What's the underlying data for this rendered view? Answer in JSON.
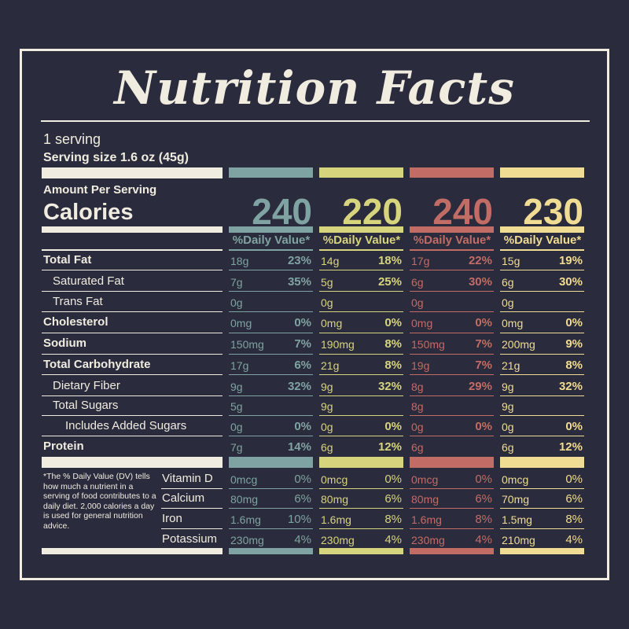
{
  "title": "Nutrition Facts",
  "servings": "1 serving",
  "serving_size_label": "Serving size",
  "serving_size_value": "1.6 oz (45g)",
  "amount_per_serving": "Amount Per Serving",
  "calories_label": "Calories",
  "dv_header": "%Daily Value*",
  "footnote": "*The % Daily Value (DV) tells how much a nutrient in a serving of food contributes to a daily diet. 2,000 calories a day is used for general nutrition advice.",
  "colors": {
    "background": "#2a2b3c",
    "text": "#f1ece0",
    "col1": "#7fa3a2",
    "col2": "#d7d47e",
    "col3": "#c26c66",
    "col4": "#f1dc93"
  },
  "nutrients": [
    {
      "label": "Total Fat",
      "bold": true,
      "indent": 0
    },
    {
      "label": "Saturated Fat",
      "bold": false,
      "indent": 1
    },
    {
      "label": "Trans Fat",
      "bold": false,
      "indent": 1
    },
    {
      "label": "Cholesterol",
      "bold": true,
      "indent": 0
    },
    {
      "label": "Sodium",
      "bold": true,
      "indent": 0
    },
    {
      "label": "Total Carbohydrate",
      "bold": true,
      "indent": 0
    },
    {
      "label": "Dietary Fiber",
      "bold": false,
      "indent": 1
    },
    {
      "label": "Total Sugars",
      "bold": false,
      "indent": 1
    },
    {
      "label": "Includes Added Sugars",
      "bold": false,
      "indent": 2
    },
    {
      "label": "Protein",
      "bold": true,
      "indent": 0
    }
  ],
  "vitamins": [
    "Vitamin D",
    "Calcium",
    "Iron",
    "Potassium"
  ],
  "products": [
    {
      "color": "#7fa3a2",
      "calories": "240",
      "rows": [
        {
          "amt": "18g",
          "pct": "23%"
        },
        {
          "amt": "7g",
          "pct": "35%"
        },
        {
          "amt": "0g",
          "pct": ""
        },
        {
          "amt": "0mg",
          "pct": "0%"
        },
        {
          "amt": "150mg",
          "pct": "7%"
        },
        {
          "amt": "17g",
          "pct": "6%"
        },
        {
          "amt": "9g",
          "pct": "32%"
        },
        {
          "amt": "5g",
          "pct": ""
        },
        {
          "amt": "0g",
          "pct": "0%"
        },
        {
          "amt": "7g",
          "pct": "14%"
        }
      ],
      "vitamins": [
        {
          "amt": "0mcg",
          "pct": "0%"
        },
        {
          "amt": "80mg",
          "pct": "6%"
        },
        {
          "amt": "1.6mg",
          "pct": "10%"
        },
        {
          "amt": "230mg",
          "pct": "4%"
        }
      ]
    },
    {
      "color": "#d7d47e",
      "calories": "220",
      "rows": [
        {
          "amt": "14g",
          "pct": "18%"
        },
        {
          "amt": "5g",
          "pct": "25%"
        },
        {
          "amt": "0g",
          "pct": ""
        },
        {
          "amt": "0mg",
          "pct": "0%"
        },
        {
          "amt": "190mg",
          "pct": "8%"
        },
        {
          "amt": "21g",
          "pct": "8%"
        },
        {
          "amt": "9g",
          "pct": "32%"
        },
        {
          "amt": "9g",
          "pct": ""
        },
        {
          "amt": "0g",
          "pct": "0%"
        },
        {
          "amt": "6g",
          "pct": "12%"
        }
      ],
      "vitamins": [
        {
          "amt": "0mcg",
          "pct": "0%"
        },
        {
          "amt": "80mg",
          "pct": "6%"
        },
        {
          "amt": "1.6mg",
          "pct": "8%"
        },
        {
          "amt": "230mg",
          "pct": "4%"
        }
      ]
    },
    {
      "color": "#c26c66",
      "calories": "240",
      "rows": [
        {
          "amt": "17g",
          "pct": "22%"
        },
        {
          "amt": "6g",
          "pct": "30%"
        },
        {
          "amt": "0g",
          "pct": ""
        },
        {
          "amt": "0mg",
          "pct": "0%"
        },
        {
          "amt": "150mg",
          "pct": "7%"
        },
        {
          "amt": "19g",
          "pct": "7%"
        },
        {
          "amt": "8g",
          "pct": "29%"
        },
        {
          "amt": "8g",
          "pct": ""
        },
        {
          "amt": "0g",
          "pct": "0%"
        },
        {
          "amt": "6g",
          "pct": ""
        }
      ],
      "vitamins": [
        {
          "amt": "0mcg",
          "pct": "0%"
        },
        {
          "amt": "80mg",
          "pct": "6%"
        },
        {
          "amt": "1.6mg",
          "pct": "8%"
        },
        {
          "amt": "230mg",
          "pct": "4%"
        }
      ]
    },
    {
      "color": "#f1dc93",
      "calories": "230",
      "rows": [
        {
          "amt": "15g",
          "pct": "19%"
        },
        {
          "amt": "6g",
          "pct": "30%"
        },
        {
          "amt": "0g",
          "pct": ""
        },
        {
          "amt": "0mg",
          "pct": "0%"
        },
        {
          "amt": "200mg",
          "pct": "9%"
        },
        {
          "amt": "21g",
          "pct": "8%"
        },
        {
          "amt": "9g",
          "pct": "32%"
        },
        {
          "amt": "9g",
          "pct": ""
        },
        {
          "amt": "0g",
          "pct": "0%"
        },
        {
          "amt": "6g",
          "pct": "12%"
        }
      ],
      "vitamins": [
        {
          "amt": "0mcg",
          "pct": "0%"
        },
        {
          "amt": "70mg",
          "pct": "6%"
        },
        {
          "amt": "1.5mg",
          "pct": "8%"
        },
        {
          "amt": "210mg",
          "pct": "4%"
        }
      ]
    }
  ]
}
